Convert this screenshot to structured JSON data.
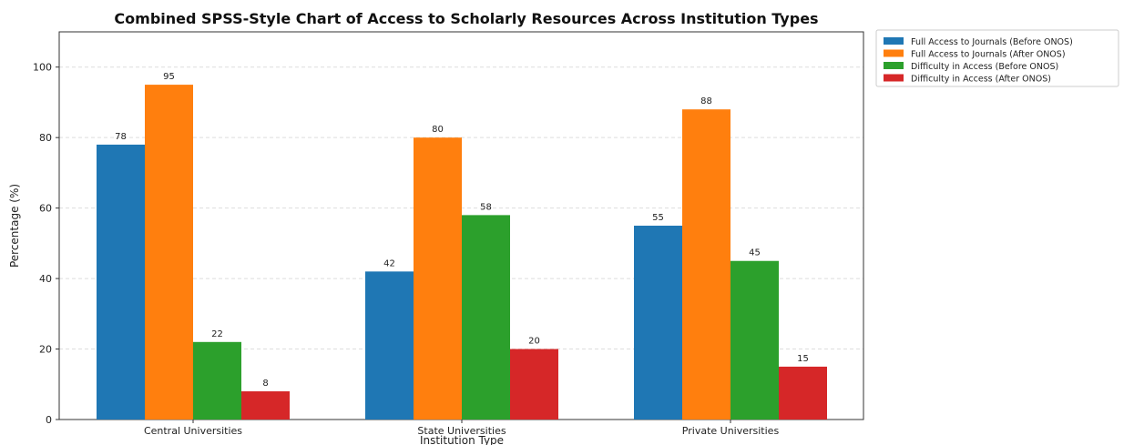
{
  "chart_data": {
    "type": "bar",
    "title": "Combined SPSS-Style Chart of Access to Scholarly Resources Across Institution Types",
    "xlabel": "Institution Type",
    "ylabel": "Percentage (%)",
    "ylim": [
      0,
      110
    ],
    "yticks": [
      "0",
      "20",
      "40",
      "60",
      "80",
      "100"
    ],
    "grid": "horizontal dashed",
    "legend_position": "right, outside plot",
    "categories": [
      "Central Universities",
      "State Universities",
      "Private Universities"
    ],
    "series": [
      {
        "name": "Full Access to Journals (Before ONOS)",
        "values": [
          78,
          42,
          55
        ],
        "color": "#1f77b4"
      },
      {
        "name": "Full Access to Journals (After ONOS)",
        "values": [
          95,
          80,
          88
        ],
        "color": "#ff7f0e"
      },
      {
        "name": "Difficulty in Access (Before ONOS)",
        "values": [
          22,
          58,
          45
        ],
        "color": "#2ca02c"
      },
      {
        "name": "Difficulty in Access (After ONOS)",
        "values": [
          8,
          20,
          15
        ],
        "color": "#d62728"
      }
    ]
  }
}
